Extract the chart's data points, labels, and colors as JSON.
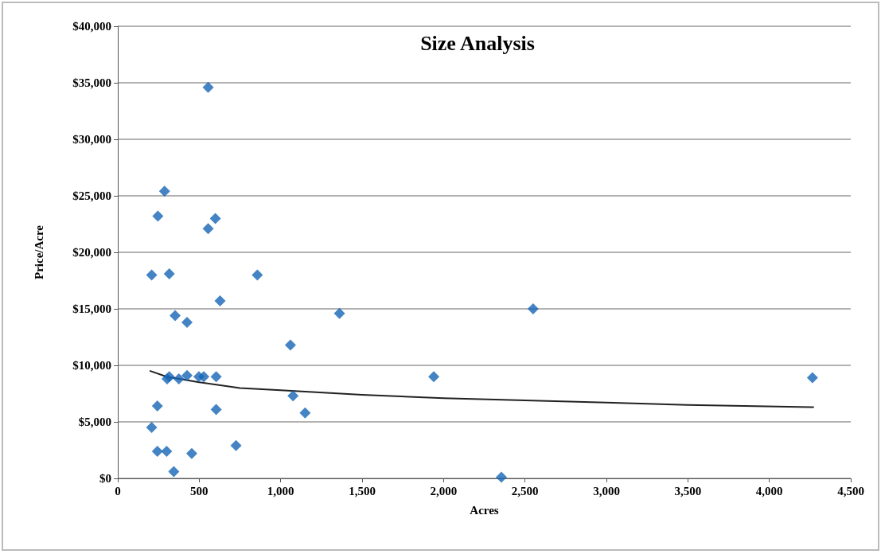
{
  "chart_data": {
    "type": "scatter",
    "title": "Size Analysis",
    "xlabel": "Acres",
    "ylabel": "Price/Acre",
    "xlim": [
      0,
      4500
    ],
    "xticks": [
      {
        "value": 0,
        "label": "0"
      },
      {
        "value": 500,
        "label": "500"
      },
      {
        "value": 1000,
        "label": "1,000"
      },
      {
        "value": 1500,
        "label": "1,500"
      },
      {
        "value": 2000,
        "label": "2,000"
      },
      {
        "value": 2500,
        "label": "2,500"
      },
      {
        "value": 3000,
        "label": "3,000"
      },
      {
        "value": 3500,
        "label": "3,500"
      },
      {
        "value": 4000,
        "label": "4,000"
      },
      {
        "value": 4500,
        "label": "4,500"
      }
    ],
    "ylim": [
      0,
      40000
    ],
    "yticks": [
      {
        "value": 0,
        "label": "$0"
      },
      {
        "value": 5000,
        "label": "$5,000"
      },
      {
        "value": 10000,
        "label": "$10,000"
      },
      {
        "value": 15000,
        "label": "$15,000"
      },
      {
        "value": 20000,
        "label": "$20,000"
      },
      {
        "value": 25000,
        "label": "$25,000"
      },
      {
        "value": 30000,
        "label": "$30,000"
      },
      {
        "value": 35000,
        "label": "$35,000"
      },
      {
        "value": 40000,
        "label": "$40,000"
      }
    ],
    "grid": "y",
    "series": [
      {
        "marker": "diamond",
        "color": "#1565b5",
        "x": [
          555,
          287,
          246,
          599,
          555,
          208,
          316,
          857,
          628,
          352,
          425,
          1361,
          1060,
          303,
          316,
          375,
          425,
          498,
          528,
          604,
          1076,
          243,
          604,
          1150,
          208,
          243,
          300,
          454,
          726,
          344,
          2550,
          2355,
          1940,
          4265
        ],
        "values": [
          34600,
          25400,
          23200,
          23000,
          22100,
          18000,
          18100,
          18000,
          15700,
          14400,
          13800,
          14600,
          11800,
          8800,
          9000,
          8800,
          9100,
          9000,
          9000,
          9000,
          7300,
          6400,
          6100,
          5800,
          4500,
          2400,
          2400,
          2200,
          2900,
          600,
          15000,
          100,
          9000,
          8900
        ]
      },
      {
        "type": "line",
        "marker": "none",
        "line_style": "solid",
        "color": "#222222",
        "x": [
          200,
          300,
          500,
          750,
          1000,
          1500,
          2000,
          2500,
          3000,
          3500,
          4270
        ],
        "values": [
          9500,
          9000,
          8500,
          8000,
          7800,
          7400,
          7100,
          6900,
          6700,
          6500,
          6300
        ]
      }
    ]
  }
}
